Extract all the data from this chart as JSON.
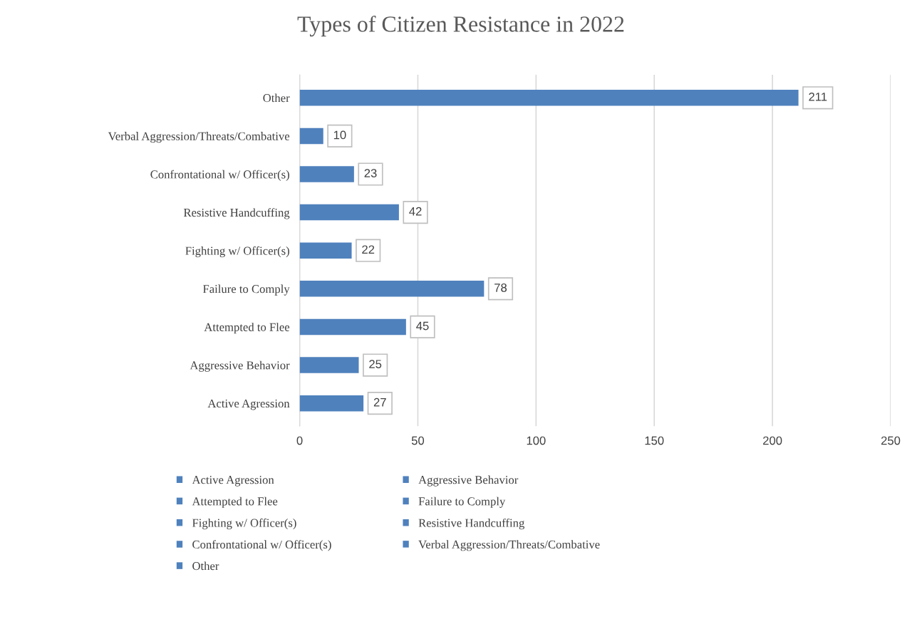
{
  "chart_data": {
    "type": "bar",
    "orientation": "horizontal",
    "title": "Types of Citizen Resistance in 2022",
    "categories": [
      "Other",
      "Verbal Aggression/Threats/Combative",
      "Confrontational w/ Officer(s)",
      "Resistive Handcuffing",
      "Fighting w/ Officer(s)",
      "Failure to Comply",
      "Attempted to Flee",
      "Aggressive Behavior",
      "Active Agression"
    ],
    "series": [
      {
        "name": "Active Agression",
        "color": "#4f81bd",
        "values": [
          null,
          null,
          null,
          null,
          null,
          null,
          null,
          null,
          27
        ]
      },
      {
        "name": "Aggressive Behavior",
        "color": "#4f81bd",
        "values": [
          null,
          null,
          null,
          null,
          null,
          null,
          null,
          25,
          null
        ]
      },
      {
        "name": "Attempted to Flee",
        "color": "#4f81bd",
        "values": [
          null,
          null,
          null,
          null,
          null,
          null,
          45,
          null,
          null
        ]
      },
      {
        "name": "Failure to Comply",
        "color": "#4f81bd",
        "values": [
          null,
          null,
          null,
          null,
          null,
          78,
          null,
          null,
          null
        ]
      },
      {
        "name": "Fighting w/ Officer(s)",
        "color": "#4f81bd",
        "values": [
          null,
          null,
          null,
          null,
          22,
          null,
          null,
          null,
          null
        ]
      },
      {
        "name": "Resistive Handcuffing",
        "color": "#4f81bd",
        "values": [
          null,
          null,
          null,
          42,
          null,
          null,
          null,
          null,
          null
        ]
      },
      {
        "name": "Confrontational w/ Officer(s)",
        "color": "#4f81bd",
        "values": [
          null,
          null,
          23,
          null,
          null,
          null,
          null,
          null,
          null
        ]
      },
      {
        "name": "Verbal Aggression/Threats/Combative",
        "color": "#4f81bd",
        "values": [
          null,
          10,
          null,
          null,
          null,
          null,
          null,
          null,
          null
        ]
      },
      {
        "name": "Other",
        "color": "#4f81bd",
        "values": [
          211,
          null,
          null,
          null,
          null,
          null,
          null,
          null,
          null
        ]
      }
    ],
    "xlim": [
      0,
      250
    ],
    "xticks": [
      0,
      50,
      100,
      150,
      200,
      250
    ],
    "grid": "x",
    "data_labels": true,
    "legend": "bottom"
  }
}
